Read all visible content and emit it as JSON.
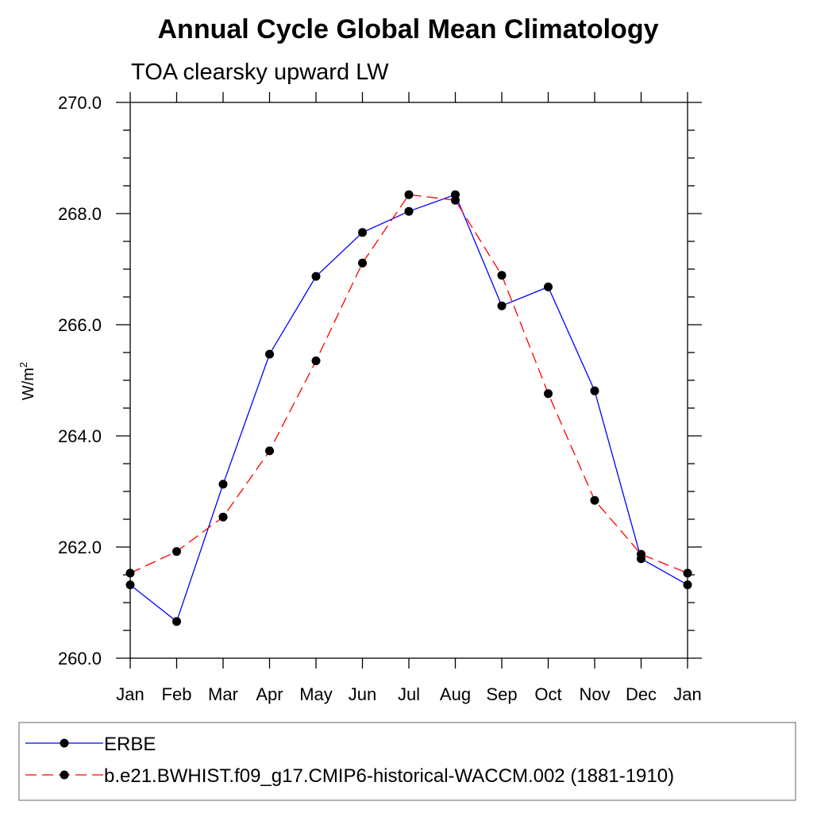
{
  "chart_data": {
    "type": "line",
    "title": "Annual Cycle Global Mean Climatology",
    "subtitle": "TOA clearsky upward LW",
    "ylabel": "W/m",
    "ylabel_superscript": "2",
    "xlabel": "",
    "categories": [
      "Jan",
      "Feb",
      "Mar",
      "Apr",
      "May",
      "Jun",
      "Jul",
      "Aug",
      "Sep",
      "Oct",
      "Nov",
      "Dec",
      "Jan"
    ],
    "ylim": [
      260.0,
      270.0
    ],
    "yticks": [
      260.0,
      262.0,
      264.0,
      266.0,
      268.0,
      270.0
    ],
    "ytick_labels": [
      "260.0",
      "262.0",
      "264.0",
      "266.0",
      "268.0",
      "270.0"
    ],
    "series": [
      {
        "name": "ERBE",
        "color": "#0000ff",
        "dash": "solid",
        "marker": "filled-circle",
        "values": [
          261.32,
          260.66,
          263.13,
          265.47,
          266.87,
          267.66,
          268.04,
          268.34,
          266.34,
          266.68,
          264.81,
          261.79,
          261.32
        ]
      },
      {
        "name": "b.e21.BWHIST.f09_g17.CMIP6-historical-WACCM.002 (1881-1910)",
        "color": "#ff0000",
        "dash": "dashed",
        "marker": "filled-circle",
        "values": [
          261.53,
          261.92,
          262.54,
          263.73,
          265.35,
          267.11,
          268.34,
          268.24,
          266.89,
          264.76,
          262.84,
          261.87,
          261.53
        ]
      }
    ],
    "legend_position": "bottom",
    "grid": false
  }
}
